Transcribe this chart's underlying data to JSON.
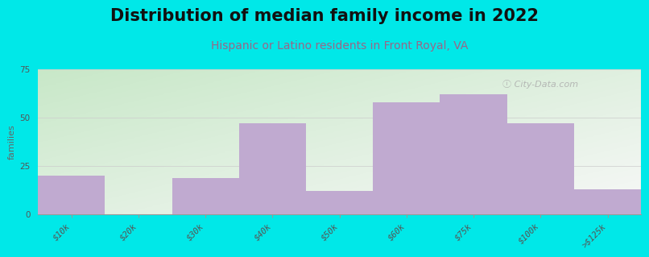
{
  "title": "Distribution of median family income in 2022",
  "subtitle": "Hispanic or Latino residents in Front Royal, VA",
  "x_labels": [
    "$10k",
    "$20k",
    "$30k",
    "$40k",
    "$50k",
    "$60k",
    "$75k",
    "$100k",
    ">$125k"
  ],
  "bar_color": "#c0aad0",
  "bg_color": "#00e8e8",
  "plot_bg_left": "#c8e8c8",
  "plot_bg_right": "#e8f0f8",
  "ylabel": "families",
  "ylim": [
    0,
    75
  ],
  "yticks": [
    0,
    25,
    50,
    75
  ],
  "watermark": "ⓘ City-Data.com",
  "title_fontsize": 15,
  "subtitle_fontsize": 10,
  "axis_label_fontsize": 8,
  "tick_fontsize": 7.5,
  "subtitle_color": "#996688"
}
